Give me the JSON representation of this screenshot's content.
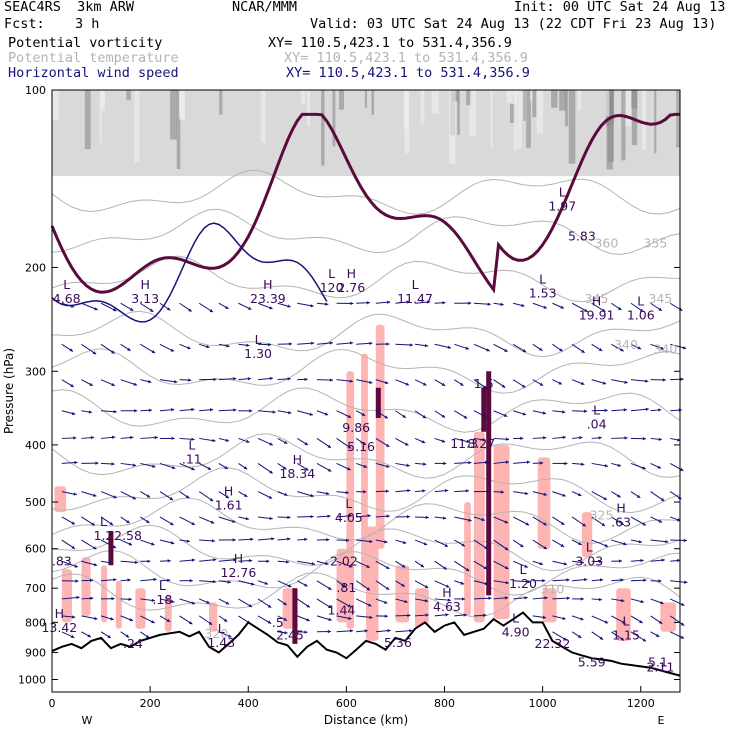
{
  "header": {
    "model": "SEAC4RS  3km ARW",
    "org": "NCAR/MMM",
    "init": "Init: 00 UTC Sat 24 Aug 13",
    "fcst_label": "Fcst:",
    "fcst_value": "3 h",
    "valid": "Valid: 03 UTC Sat 24 Aug 13 (22 CDT Fri 23 Aug 13)",
    "fields": [
      {
        "name": "Potential vorticity",
        "xy": "XY= 110.5,423.1 to 531.4,356.9",
        "color": "#000000"
      },
      {
        "name": "Potential temperature",
        "xy": "XY= 110.5,423.1 to 531.4,356.9",
        "color": "#b4b4b4"
      },
      {
        "name": "Horizontal wind speed",
        "xy": "XY= 110.5,423.1 to 531.4,356.9",
        "color": "#14147a"
      }
    ]
  },
  "colors": {
    "pv_shading": "#ffb4b4",
    "high_pv": "#5a0a3c",
    "theta_contour": "#b4b4b4",
    "wind_vector": "#14147a",
    "terrain": "#000000"
  },
  "chart_data": {
    "type": "vertical cross-section",
    "xlabel": "Distance (km)",
    "ylabel": "Pressure (hPa)",
    "xlim": [
      0,
      1280
    ],
    "ylim": [
      100,
      1050
    ],
    "y_scale": "log (pressure)",
    "x_ticks": [
      "0",
      "200",
      "400",
      "600",
      "800",
      "1000",
      "1200"
    ],
    "x_tick_values": [
      0,
      200,
      400,
      600,
      800,
      1000,
      1200
    ],
    "y_ticks": [
      "100",
      "200",
      "300",
      "400",
      "500",
      "600",
      "700",
      "800",
      "900",
      "1000"
    ],
    "y_tick_values": [
      100,
      200,
      300,
      400,
      500,
      600,
      700,
      800,
      900,
      1000
    ],
    "x_end_labels": {
      "left": "W",
      "right": "E"
    },
    "theta_contour_labels": [
      {
        "text": "360",
        "x": 1130,
        "p": 185
      },
      {
        "text": "355",
        "x": 1230,
        "p": 185
      },
      {
        "text": "345",
        "x": 1110,
        "p": 230
      },
      {
        "text": "345",
        "x": 1240,
        "p": 230
      },
      {
        "text": "340",
        "x": 1170,
        "p": 275
      },
      {
        "text": "340",
        "x": 1250,
        "p": 280
      },
      {
        "text": "325",
        "x": 1120,
        "p": 535
      },
      {
        "text": "310",
        "x": 1020,
        "p": 715
      },
      {
        "text": "320",
        "x": 335,
        "p": 850
      }
    ],
    "extrema_labels": [
      {
        "type": "L",
        "value": "4.68",
        "x": 30,
        "p": 230
      },
      {
        "type": "H",
        "value": "3.13",
        "x": 190,
        "p": 230
      },
      {
        "type": "H",
        "value": "23.39",
        "x": 440,
        "p": 230
      },
      {
        "type": "L",
        "value": "1.30",
        "x": 420,
        "p": 285
      },
      {
        "type": "L",
        "value": "120",
        "x": 570,
        "p": 220
      },
      {
        "type": "H",
        "value": "2.76",
        "x": 610,
        "p": 220
      },
      {
        "type": "L",
        "value": "11.47",
        "x": 740,
        "p": 230
      },
      {
        "type": "L",
        "value": "1.97",
        "x": 1040,
        "p": 160
      },
      {
        "type": "",
        "value": "5.83",
        "x": 1080,
        "p": 180
      },
      {
        "type": "L",
        "value": "1.53",
        "x": 1000,
        "p": 225
      },
      {
        "type": "H",
        "value": "19.91",
        "x": 1110,
        "p": 245
      },
      {
        "type": "L",
        "value": "1.06",
        "x": 1200,
        "p": 245
      },
      {
        "type": "",
        "value": "1.5",
        "x": 880,
        "p": 320
      },
      {
        "type": "",
        "value": "9.86",
        "x": 620,
        "p": 380
      },
      {
        "type": "",
        "value": "5.16",
        "x": 630,
        "p": 410
      },
      {
        "type": "",
        "value": "11.3",
        "x": 840,
        "p": 405
      },
      {
        "type": "",
        "value": "8.27",
        "x": 875,
        "p": 405
      },
      {
        "type": "L",
        "value": ".04",
        "x": 1110,
        "p": 375
      },
      {
        "type": "L",
        "value": ".11",
        "x": 285,
        "p": 430
      },
      {
        "type": "H",
        "value": "18.34",
        "x": 500,
        "p": 455
      },
      {
        "type": "H",
        "value": "1.61",
        "x": 360,
        "p": 515
      },
      {
        "type": "L",
        "value": "4.05",
        "x": 605,
        "p": 540
      },
      {
        "type": "H",
        "value": ".63",
        "x": 1160,
        "p": 550
      },
      {
        "type": "L",
        "value": "1.2",
        "x": 105,
        "p": 580
      },
      {
        "type": "",
        "value": "2.58",
        "x": 155,
        "p": 580
      },
      {
        "type": "",
        "value": ".83",
        "x": 20,
        "p": 640
      },
      {
        "type": "",
        "value": "2.02",
        "x": 595,
        "p": 640
      },
      {
        "type": "L",
        "value": "3.03",
        "x": 1095,
        "p": 640
      },
      {
        "type": "H",
        "value": "12.76",
        "x": 380,
        "p": 670
      },
      {
        "type": "L",
        "value": "1.20",
        "x": 960,
        "p": 700
      },
      {
        "type": "",
        "value": ".81",
        "x": 600,
        "p": 710
      },
      {
        "type": "L",
        "value": ".18",
        "x": 225,
        "p": 745
      },
      {
        "type": "",
        "value": "1.44",
        "x": 590,
        "p": 775
      },
      {
        "type": "H",
        "value": "4.63",
        "x": 805,
        "p": 765
      },
      {
        "type": "",
        "value": ".5",
        "x": 460,
        "p": 815
      },
      {
        "type": "H",
        "value": "13.42",
        "x": 15,
        "p": 830
      },
      {
        "type": "",
        "value": "2.45",
        "x": 485,
        "p": 855
      },
      {
        "type": "L",
        "value": "4.90",
        "x": 945,
        "p": 845
      },
      {
        "type": "L",
        "value": "1.15",
        "x": 1170,
        "p": 855
      },
      {
        "type": "",
        "value": "5.36",
        "x": 705,
        "p": 880
      },
      {
        "type": "",
        "value": "22.32",
        "x": 1020,
        "p": 885
      },
      {
        "type": "",
        "value": ".24",
        "x": 165,
        "p": 885
      },
      {
        "type": "L",
        "value": "1.43",
        "x": 345,
        "p": 880
      },
      {
        "type": "",
        "value": "5.59",
        "x": 1100,
        "p": 950
      },
      {
        "type": "",
        "value": "5.1",
        "x": 1235,
        "p": 950
      },
      {
        "type": "",
        "value": "2.11",
        "x": 1240,
        "p": 970
      }
    ],
    "terrain_surface_pressure": {
      "x": [
        0,
        20,
        40,
        60,
        80,
        100,
        120,
        140,
        160,
        180,
        200,
        220,
        240,
        260,
        280,
        300,
        320,
        340,
        360,
        380,
        400,
        420,
        440,
        460,
        480,
        500,
        520,
        540,
        560,
        580,
        600,
        620,
        640,
        660,
        680,
        700,
        720,
        740,
        760,
        780,
        800,
        820,
        840,
        860,
        880,
        900,
        920,
        940,
        960,
        980,
        1000,
        1020,
        1040,
        1060,
        1080,
        1100,
        1120,
        1140,
        1160,
        1180,
        1200,
        1220,
        1240,
        1260,
        1280
      ],
      "p": [
        895,
        880,
        870,
        885,
        860,
        850,
        885,
        870,
        880,
        860,
        850,
        840,
        835,
        830,
        845,
        830,
        880,
        900,
        870,
        840,
        800,
        820,
        840,
        865,
        875,
        915,
        880,
        860,
        890,
        900,
        920,
        890,
        860,
        870,
        890,
        850,
        860,
        820,
        800,
        830,
        810,
        800,
        840,
        830,
        820,
        790,
        810,
        790,
        770,
        800,
        800,
        860,
        880,
        900,
        910,
        920,
        925,
        930,
        940,
        945,
        950,
        955,
        965,
        975,
        985
      ]
    }
  }
}
